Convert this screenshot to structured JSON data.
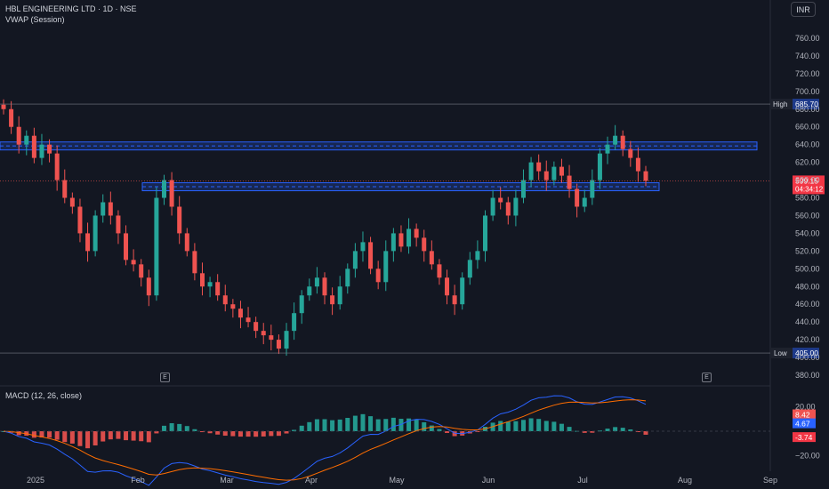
{
  "header": {
    "symbol_line": "HBL ENGINEERING LTD · 1D · NSE",
    "indicator_line": "VWAP (Session)"
  },
  "currency_button": "INR",
  "earnings_markers": [
    "E",
    "E"
  ],
  "macd": {
    "label": "MACD (12, 26, close)",
    "readouts": {
      "histogram": "8.42",
      "macd": "4.67",
      "signal": "-3.74"
    },
    "axis_ticks": [
      "20.00",
      "−20.00"
    ],
    "colors": {
      "macd_line": "#2962ff",
      "signal_line": "#ff6d00",
      "hist_pos": "#26a69a",
      "hist_neg": "#ef5350"
    }
  },
  "chart_data": {
    "type": "candlestick",
    "price_axis": {
      "ticks": [
        760,
        740,
        720,
        700,
        680,
        660,
        640,
        620,
        600,
        580,
        560,
        540,
        520,
        500,
        480,
        460,
        440,
        420,
        400,
        380
      ],
      "range": [
        372,
        775
      ]
    },
    "x_labels": [
      "2025",
      "Feb",
      "Mar",
      "Apr",
      "May",
      "Jun",
      "Jul",
      "Aug",
      "Sep"
    ],
    "high": {
      "label": "High",
      "value": "685.70"
    },
    "low": {
      "label": "Low",
      "value": "405.00"
    },
    "last": {
      "price": "599.15",
      "countdown": "04:34:12"
    },
    "resistance_zone": [
      634,
      643
    ],
    "support_zone": [
      588,
      597
    ],
    "close_path": [
      680,
      660,
      640,
      650,
      625,
      640,
      630,
      600,
      580,
      570,
      540,
      520,
      560,
      575,
      560,
      540,
      510,
      505,
      490,
      470,
      580,
      600,
      570,
      540,
      520,
      495,
      480,
      485,
      470,
      460,
      455,
      445,
      440,
      430,
      425,
      420,
      410,
      430,
      450,
      470,
      480,
      490,
      470,
      460,
      480,
      500,
      520,
      530,
      500,
      485,
      520,
      540,
      525,
      545,
      535,
      520,
      505,
      490,
      470,
      460,
      490,
      510,
      520,
      560,
      580,
      575,
      560,
      580,
      600,
      620,
      610,
      600,
      615,
      605,
      590,
      570,
      580,
      600,
      630,
      640,
      650,
      635,
      625,
      610,
      599.15
    ],
    "colors": {
      "up": "#26a69a",
      "down": "#ef5350",
      "zone": "#2962ff",
      "background": "#131722"
    }
  }
}
